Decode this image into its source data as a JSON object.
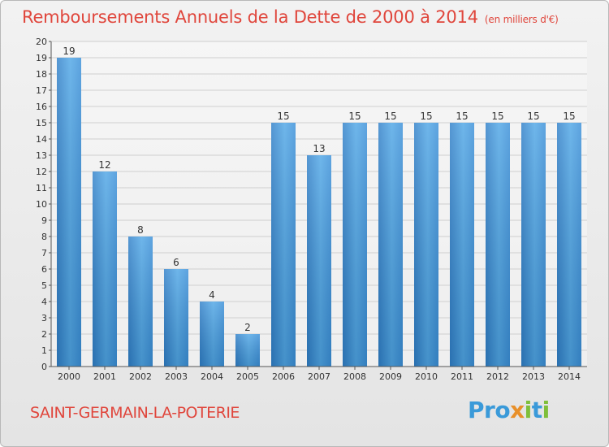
{
  "page": {
    "title": "Remboursements Annuels de la Dette de 2000 à 2014",
    "unit": "(en milliers d'€)",
    "commune": "SAINT-GERMAIN-LA-POTERIE",
    "brand": "Proxiti"
  },
  "colors": {
    "bar": "#3a8fd8",
    "bar_light": "#6bb8ee",
    "title": "#e0463c",
    "grid": "#cfcfcf"
  },
  "chart_data": {
    "type": "bar",
    "title": "Remboursements Annuels de la Dette de 2000 à 2014",
    "subtitle": "(en milliers d'€)",
    "categories": [
      "2000",
      "2001",
      "2002",
      "2003",
      "2004",
      "2005",
      "2006",
      "2007",
      "2008",
      "2009",
      "2010",
      "2011",
      "2012",
      "2013",
      "2014"
    ],
    "values": [
      19,
      12,
      8,
      6,
      4,
      2,
      15,
      13,
      15,
      15,
      15,
      15,
      15,
      15,
      15
    ],
    "data_labels": [
      "19",
      "12",
      "8",
      "6",
      "4",
      "2",
      "15",
      "13",
      "15",
      "15",
      "15",
      "15",
      "15",
      "15",
      "15"
    ],
    "y_ticks": [
      "0",
      "1",
      "2",
      "3",
      "4",
      "5",
      "6",
      "7",
      "8",
      "9",
      "10",
      "11",
      "12",
      "13",
      "14",
      "15",
      "16",
      "17",
      "18",
      "19",
      "20"
    ],
    "ylim": [
      0,
      20
    ],
    "grid": true,
    "legend": "none"
  }
}
